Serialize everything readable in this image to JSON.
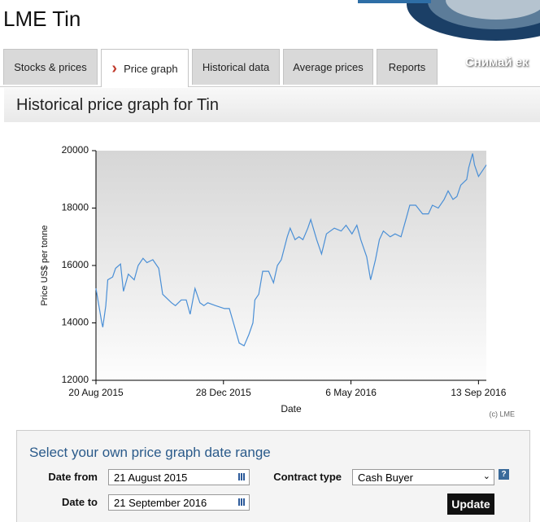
{
  "header": {
    "title": "LME Tin",
    "banner_text": "Снимай ек"
  },
  "tabs": [
    "Stocks & prices",
    "Price graph",
    "Historical data",
    "Average prices",
    "Reports"
  ],
  "active_tab": 1,
  "section": {
    "title": "Historical price graph for Tin"
  },
  "chart_data": {
    "type": "line",
    "x_label": "Date",
    "y_label": "Price US$ per tonne",
    "credit": "(c) LME",
    "x": [
      "2015-08-20",
      "2015-08-26",
      "2015-08-27",
      "2015-08-30",
      "2015-09-01",
      "2015-09-06",
      "2015-09-09",
      "2015-09-14",
      "2015-09-17",
      "2015-09-22",
      "2015-09-28",
      "2015-10-02",
      "2015-10-07",
      "2015-10-11",
      "2015-10-17",
      "2015-10-23",
      "2015-10-27",
      "2015-11-05",
      "2015-11-09",
      "2015-11-15",
      "2015-11-20",
      "2015-11-24",
      "2015-11-29",
      "2015-12-04",
      "2015-12-08",
      "2015-12-12",
      "2015-12-20",
      "2015-12-29",
      "2016-01-03",
      "2016-01-08",
      "2016-01-13",
      "2016-01-18",
      "2016-01-23",
      "2016-01-27",
      "2016-01-29",
      "2016-02-02",
      "2016-02-06",
      "2016-02-12",
      "2016-02-17",
      "2016-02-21",
      "2016-02-25",
      "2016-03-02",
      "2016-03-05",
      "2016-03-10",
      "2016-03-14",
      "2016-03-18",
      "2016-03-23",
      "2016-03-26",
      "2016-04-01",
      "2016-04-06",
      "2016-04-11",
      "2016-04-19",
      "2016-04-26",
      "2016-05-01",
      "2016-05-07",
      "2016-05-12",
      "2016-05-16",
      "2016-05-22",
      "2016-05-26",
      "2016-05-31",
      "2016-06-04",
      "2016-06-08",
      "2016-06-15",
      "2016-06-20",
      "2016-06-26",
      "2016-07-01",
      "2016-07-05",
      "2016-07-11",
      "2016-07-18",
      "2016-07-24",
      "2016-07-28",
      "2016-08-03",
      "2016-08-09",
      "2016-08-13",
      "2016-08-18",
      "2016-08-22",
      "2016-08-26",
      "2016-09-01",
      "2016-09-03",
      "2016-09-07",
      "2016-09-09",
      "2016-09-13",
      "2016-09-17",
      "2016-09-21"
    ],
    "series": [
      {
        "color": "#4a8fd6",
        "values": [
          15200,
          14000,
          13850,
          14600,
          15500,
          15600,
          15900,
          16050,
          15100,
          15700,
          15500,
          16000,
          16250,
          16100,
          16200,
          15900,
          15000,
          14700,
          14600,
          14800,
          14800,
          14300,
          15200,
          14700,
          14600,
          14700,
          14600,
          14500,
          14500,
          13900,
          13300,
          13200,
          13600,
          14000,
          14800,
          15000,
          15800,
          15800,
          15400,
          16000,
          16200,
          17000,
          17300,
          16900,
          17000,
          16900,
          17300,
          17600,
          16900,
          16400,
          17100,
          17300,
          17200,
          17400,
          17100,
          17400,
          16900,
          16300,
          15500,
          16200,
          16900,
          17200,
          17000,
          17100,
          17000,
          17600,
          18100,
          18100,
          17800,
          17800,
          18100,
          18000,
          18300,
          18600,
          18300,
          18400,
          18800,
          19000,
          19400,
          19900,
          19500,
          19100,
          19300,
          19500
        ]
      }
    ],
    "xlim": [
      "2015-08-20",
      "2016-09-21"
    ],
    "xticks": [
      {
        "value": "2015-08-20",
        "label": "20 Aug 2015"
      },
      {
        "value": "2015-12-28",
        "label": "28 Dec 2015"
      },
      {
        "value": "2016-05-06",
        "label": "6 May 2016"
      },
      {
        "value": "2016-09-13",
        "label": "13 Sep 2016"
      }
    ],
    "ylim": [
      12000,
      20000
    ],
    "yticks": [
      12000,
      14000,
      16000,
      18000,
      20000
    ]
  },
  "form": {
    "title": "Select your own price graph date range",
    "date_from_label": "Date from",
    "date_from": "21 August 2015",
    "date_to_label": "Date to",
    "date_to": "21 September 2016",
    "contract_label": "Contract type",
    "contract": "Cash Buyer",
    "help": "?",
    "button": "Update"
  }
}
